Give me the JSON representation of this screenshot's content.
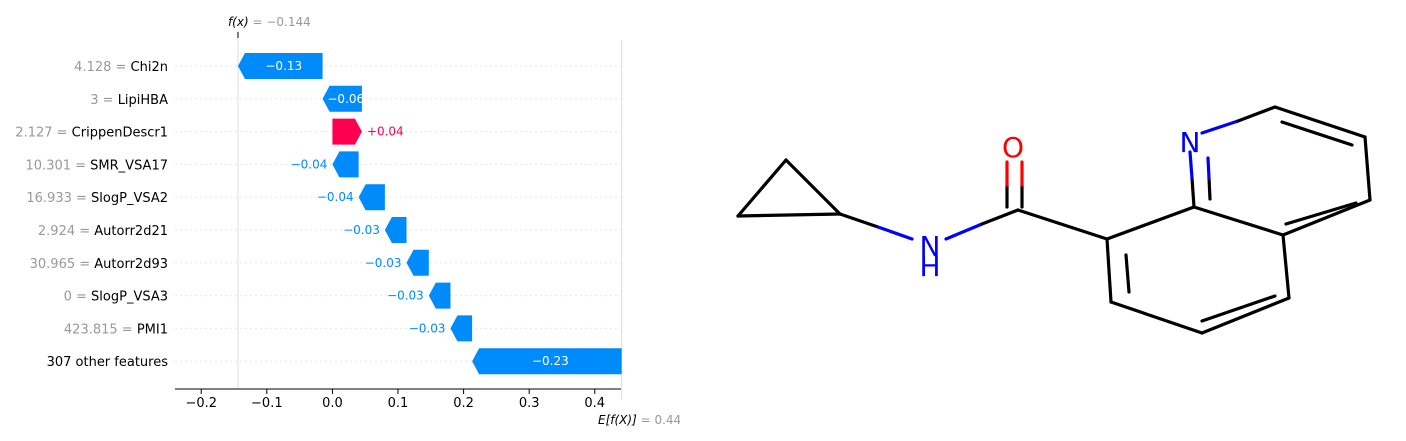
{
  "chart_data": {
    "type": "waterfall",
    "fx_label": "f(x)",
    "fx_value_text": "= −0.144",
    "fx": -0.144,
    "ex_label": "E[f(X)]",
    "ex_value_text": "= 0.441",
    "base_value": 0.441,
    "xlim": [
      -0.24,
      0.44
    ],
    "xticks": [
      -0.2,
      -0.1,
      0.0,
      0.1,
      0.2,
      0.3,
      0.4
    ],
    "xtick_labels": [
      "−0.2",
      "−0.1",
      "0.0",
      "0.1",
      "0.2",
      "0.3",
      "0.4"
    ],
    "features": [
      {
        "value_text": "4.128 =",
        "name": "Chi2n",
        "contribution": -0.13,
        "label": "−0.13",
        "start": -0.015,
        "end": -0.144,
        "label_inside": true
      },
      {
        "value_text": "3 =",
        "name": "LipiHBA",
        "contribution": -0.06,
        "label": "−0.06",
        "start": 0.045,
        "end": -0.015,
        "label_inside": true
      },
      {
        "value_text": "2.127 =",
        "name": "CrippenDescr1",
        "contribution": 0.04,
        "label": "+0.04",
        "start": 0.0,
        "end": 0.045,
        "label_inside": false
      },
      {
        "value_text": "10.301 =",
        "name": "SMR_VSA17",
        "contribution": -0.04,
        "label": "−0.04",
        "start": 0.04,
        "end": 0.0,
        "label_inside": false
      },
      {
        "value_text": "16.933 =",
        "name": "SlogP_VSA2",
        "contribution": -0.04,
        "label": "−0.04",
        "start": 0.08,
        "end": 0.04,
        "label_inside": false
      },
      {
        "value_text": "2.924 =",
        "name": "Autorr2d21",
        "contribution": -0.03,
        "label": "−0.03",
        "start": 0.113,
        "end": 0.08,
        "label_inside": false
      },
      {
        "value_text": "30.965 =",
        "name": "Autorr2d93",
        "contribution": -0.03,
        "label": "−0.03",
        "start": 0.147,
        "end": 0.113,
        "label_inside": false
      },
      {
        "value_text": "0 =",
        "name": "SlogP_VSA3",
        "contribution": -0.03,
        "label": "−0.03",
        "start": 0.18,
        "end": 0.147,
        "label_inside": false
      },
      {
        "value_text": "423.815 =",
        "name": "PMI1",
        "contribution": -0.03,
        "label": "−0.03",
        "start": 0.213,
        "end": 0.18,
        "label_inside": false
      },
      {
        "value_text": "",
        "name": "307 other features",
        "contribution": -0.23,
        "label": "−0.23",
        "start": 0.441,
        "end": 0.213,
        "label_inside": true
      }
    ],
    "colors": {
      "negative": "#008bfb",
      "positive": "#ff0051",
      "muted": "#999999",
      "text": "#000000"
    }
  },
  "molecule": {
    "atom_labels": {
      "oxygen": "O",
      "nitrogen_ring": "N",
      "nitrogen_amide": "N",
      "hydrogen": "H"
    },
    "colors": {
      "bond": "#000000",
      "oxygen": "#ff0000",
      "nitrogen": "#0000ff"
    }
  }
}
